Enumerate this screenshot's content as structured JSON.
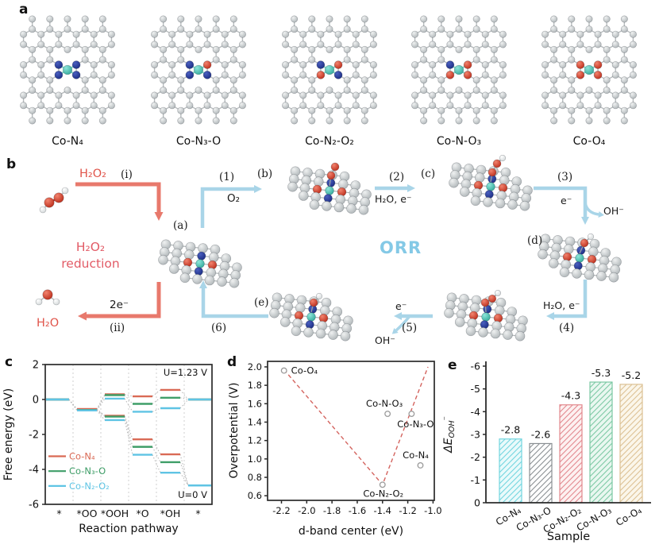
{
  "figure": {
    "panels": {
      "a": "a",
      "b": "b",
      "c": "c",
      "d": "d",
      "e": "e"
    }
  },
  "colors": {
    "carbon": "#c7ccce",
    "nitrogen": "#23379b",
    "oxygen": "#cf2d18",
    "cobalt": "#49c7b8",
    "hydrogen": "#f4f6f6",
    "red_arrow": "#e8796c",
    "blue_arrow": "#a9d5e8",
    "orr_text": "#84c9e6",
    "reduction_text": "#e25b66",
    "h2o_text": "#e0544a"
  },
  "panel_a": {
    "structures": [
      {
        "label": "Co-N₄",
        "dopants": [
          "N",
          "N",
          "N",
          "N"
        ]
      },
      {
        "label": "Co-N₃-O",
        "dopants": [
          "N",
          "O",
          "N",
          "N"
        ]
      },
      {
        "label": "Co-N₂-O₂",
        "dopants": [
          "N",
          "O",
          "O",
          "N"
        ]
      },
      {
        "label": "Co-N-O₃",
        "dopants": [
          "N",
          "O",
          "O",
          "O"
        ]
      },
      {
        "label": "Co-O₄",
        "dopants": [
          "O",
          "O",
          "O",
          "O"
        ]
      }
    ]
  },
  "panel_b": {
    "h2o2": "H₂O₂",
    "h2o": "H₂O",
    "o2": "O₂",
    "orr": "ORR",
    "reduction_line1": "H₂O₂",
    "reduction_line2": "reduction",
    "two_e": "2e⁻",
    "e_minus": "e⁻",
    "oh_minus": "OH⁻",
    "h2o_e": "H₂O, e⁻",
    "steps": {
      "i": "(i)",
      "ii": "(ii)",
      "s1": "(1)",
      "s2": "(2)",
      "s3": "(3)",
      "s4": "(4)",
      "s5": "(5)",
      "s6": "(6)"
    },
    "sites": {
      "a": "(a)",
      "b": "(b)",
      "c": "(c)",
      "d": "(d)",
      "e": "(e)"
    }
  },
  "chart_data": [
    {
      "panel": "c",
      "type": "line",
      "xlabel": "Reaction pathway",
      "ylabel": "Free energy (eV)",
      "categories": [
        "*",
        "*OO",
        "*OOH",
        "*O",
        "*OH",
        "*"
      ],
      "ylim": [
        -6,
        2
      ],
      "yticks": [
        2,
        0,
        -2,
        -4,
        -6
      ],
      "label_u123": "U=1.23 V",
      "label_u0": "U=0 V",
      "series": [
        {
          "name": "Co-N₄",
          "potential": "U=1.23 V",
          "color": "#d96a55",
          "values": [
            0,
            -0.55,
            0.3,
            0.18,
            0.55,
            0
          ]
        },
        {
          "name": "Co-N₃-O",
          "potential": "U=1.23 V",
          "color": "#3f9e68",
          "values": [
            0,
            -0.6,
            0.25,
            -0.25,
            0.1,
            0
          ]
        },
        {
          "name": "Co-N₂-O₂",
          "potential": "U=1.23 V",
          "color": "#5fc4e4",
          "values": [
            0,
            -0.62,
            0.05,
            -0.7,
            -0.5,
            0
          ]
        },
        {
          "name": "Co-N₄",
          "potential": "U=0 V",
          "color": "#d96a55",
          "values": [
            0,
            -0.55,
            -0.93,
            -2.28,
            -3.14,
            -4.92
          ]
        },
        {
          "name": "Co-N₃-O",
          "potential": "U=0 V",
          "color": "#3f9e68",
          "values": [
            0,
            -0.6,
            -0.98,
            -2.71,
            -3.59,
            -4.92
          ]
        },
        {
          "name": "Co-N₂-O₂",
          "potential": "U=0 V",
          "color": "#5fc4e4",
          "values": [
            0,
            -0.62,
            -1.18,
            -3.16,
            -4.19,
            -4.92
          ]
        }
      ],
      "legend": [
        {
          "label": "Co-N₄",
          "color": "#d96a55"
        },
        {
          "label": "Co-N₃-O",
          "color": "#3f9e68"
        },
        {
          "label": "Co-N₂-O₂",
          "color": "#5fc4e4"
        }
      ]
    },
    {
      "panel": "d",
      "type": "scatter",
      "xlabel": "d-band center (eV)",
      "ylabel": "Overpotential (V)",
      "xlim": [
        -2.31,
        -0.99
      ],
      "ylim": [
        0.55,
        2.06
      ],
      "xticks": [
        "-2.2",
        "-2.0",
        "-1.8",
        "-1.6",
        "-1.4",
        "-1.2",
        "-1.0"
      ],
      "yticks": [
        "2.0",
        "1.8",
        "1.6",
        "1.4",
        "1.2",
        "1.0",
        "0.8",
        "0.6"
      ],
      "points": [
        {
          "label": "Co-O₄",
          "x": -2.18,
          "y": 1.96
        },
        {
          "label": "Co-N-O₃",
          "x": -1.36,
          "y": 1.49
        },
        {
          "label": "Co-N₃-O",
          "x": -1.17,
          "y": 1.49
        },
        {
          "label": "Co-N₄",
          "x": -1.1,
          "y": 0.93
        },
        {
          "label": "Co-N₂-O₂",
          "x": -1.4,
          "y": 0.72
        }
      ],
      "trend": {
        "color": "#d4645f",
        "style": "dashed",
        "points": [
          [
            -2.18,
            1.97
          ],
          [
            -1.4,
            0.72
          ],
          [
            -1.04,
            2.0
          ]
        ]
      }
    },
    {
      "panel": "e",
      "type": "bar",
      "xlabel": "Sample",
      "ylabel_main": "ΔE",
      "ylabel_sub": "OOH",
      "ylabel_sup": "⁻",
      "categories": [
        "Co-N₄",
        "Co-N₃-O",
        "Co-N₂-O₂",
        "Co-N-O₃",
        "Co-O₄"
      ],
      "values": [
        -2.8,
        -2.6,
        -4.3,
        -5.3,
        -5.2
      ],
      "value_labels": [
        "-2.8",
        "-2.6",
        "-4.3",
        "-5.3",
        "-5.2"
      ],
      "ylim": [
        0,
        -6
      ],
      "yticks": [
        "-6",
        "-5",
        "-4",
        "-3",
        "-2",
        "-1",
        "0"
      ],
      "bar_colors": [
        {
          "hatch": "#72d5de",
          "fill": "#eafafb"
        },
        {
          "hatch": "#8a8f93",
          "fill": "#ffffff"
        },
        {
          "hatch": "#e2888e",
          "fill": "#fdf1f1"
        },
        {
          "hatch": "#7cc9a4",
          "fill": "#e9f7f0"
        },
        {
          "hatch": "#dcc194",
          "fill": "#fbf6ea"
        }
      ]
    }
  ]
}
